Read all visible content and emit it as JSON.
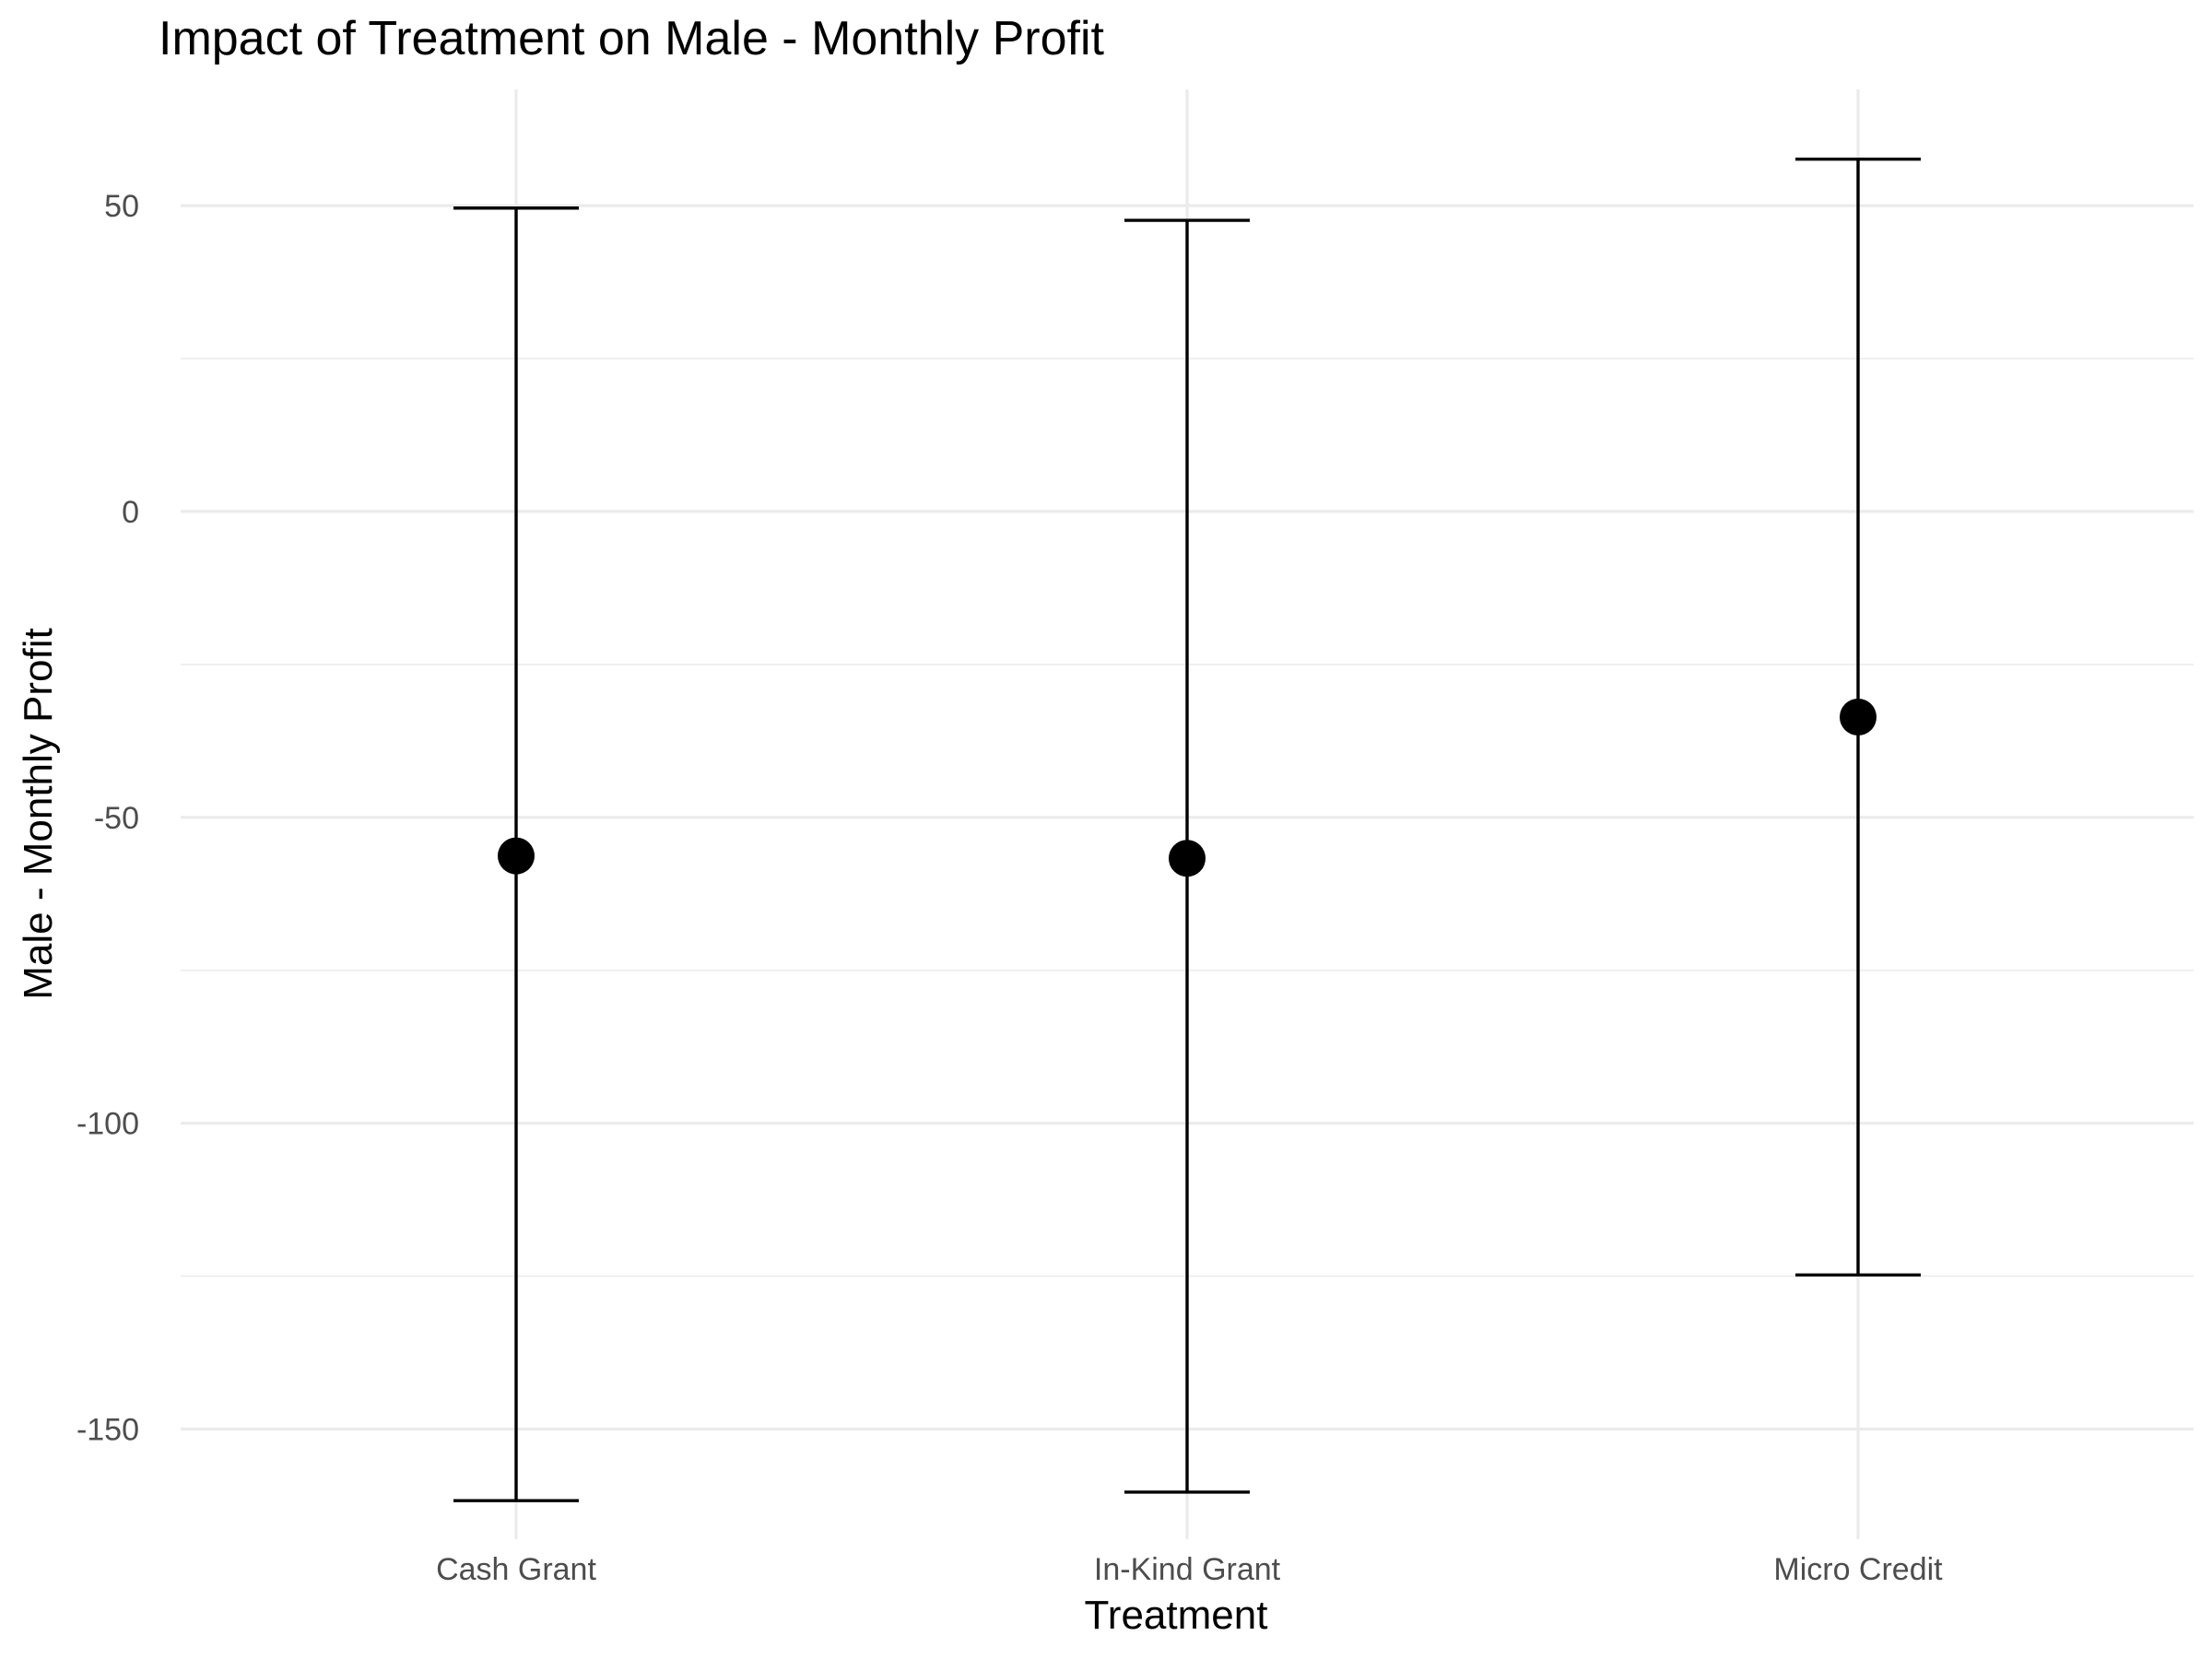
{
  "chart_data": {
    "type": "scatter",
    "title": "Impact of Treatment on Male - Monthly Profit",
    "xlabel": "Treatment",
    "ylabel": "Male - Monthly Profit",
    "categories": [
      "Cash Grant",
      "In-Kind Grant",
      "Micro Credit"
    ],
    "estimate": [
      -56.3,
      -56.7,
      -33.6
    ],
    "ci_lower": [
      -161.7,
      -160.3,
      -124.8
    ],
    "ci_upper": [
      49.6,
      47.6,
      57.6
    ],
    "ylim": [
      -168,
      69
    ],
    "yticks": [
      -150,
      -100,
      -50,
      0,
      50
    ],
    "ytick_labels": [
      "-150",
      "-100",
      "-50",
      "0",
      "50"
    ],
    "grid": true,
    "legend": "none"
  }
}
